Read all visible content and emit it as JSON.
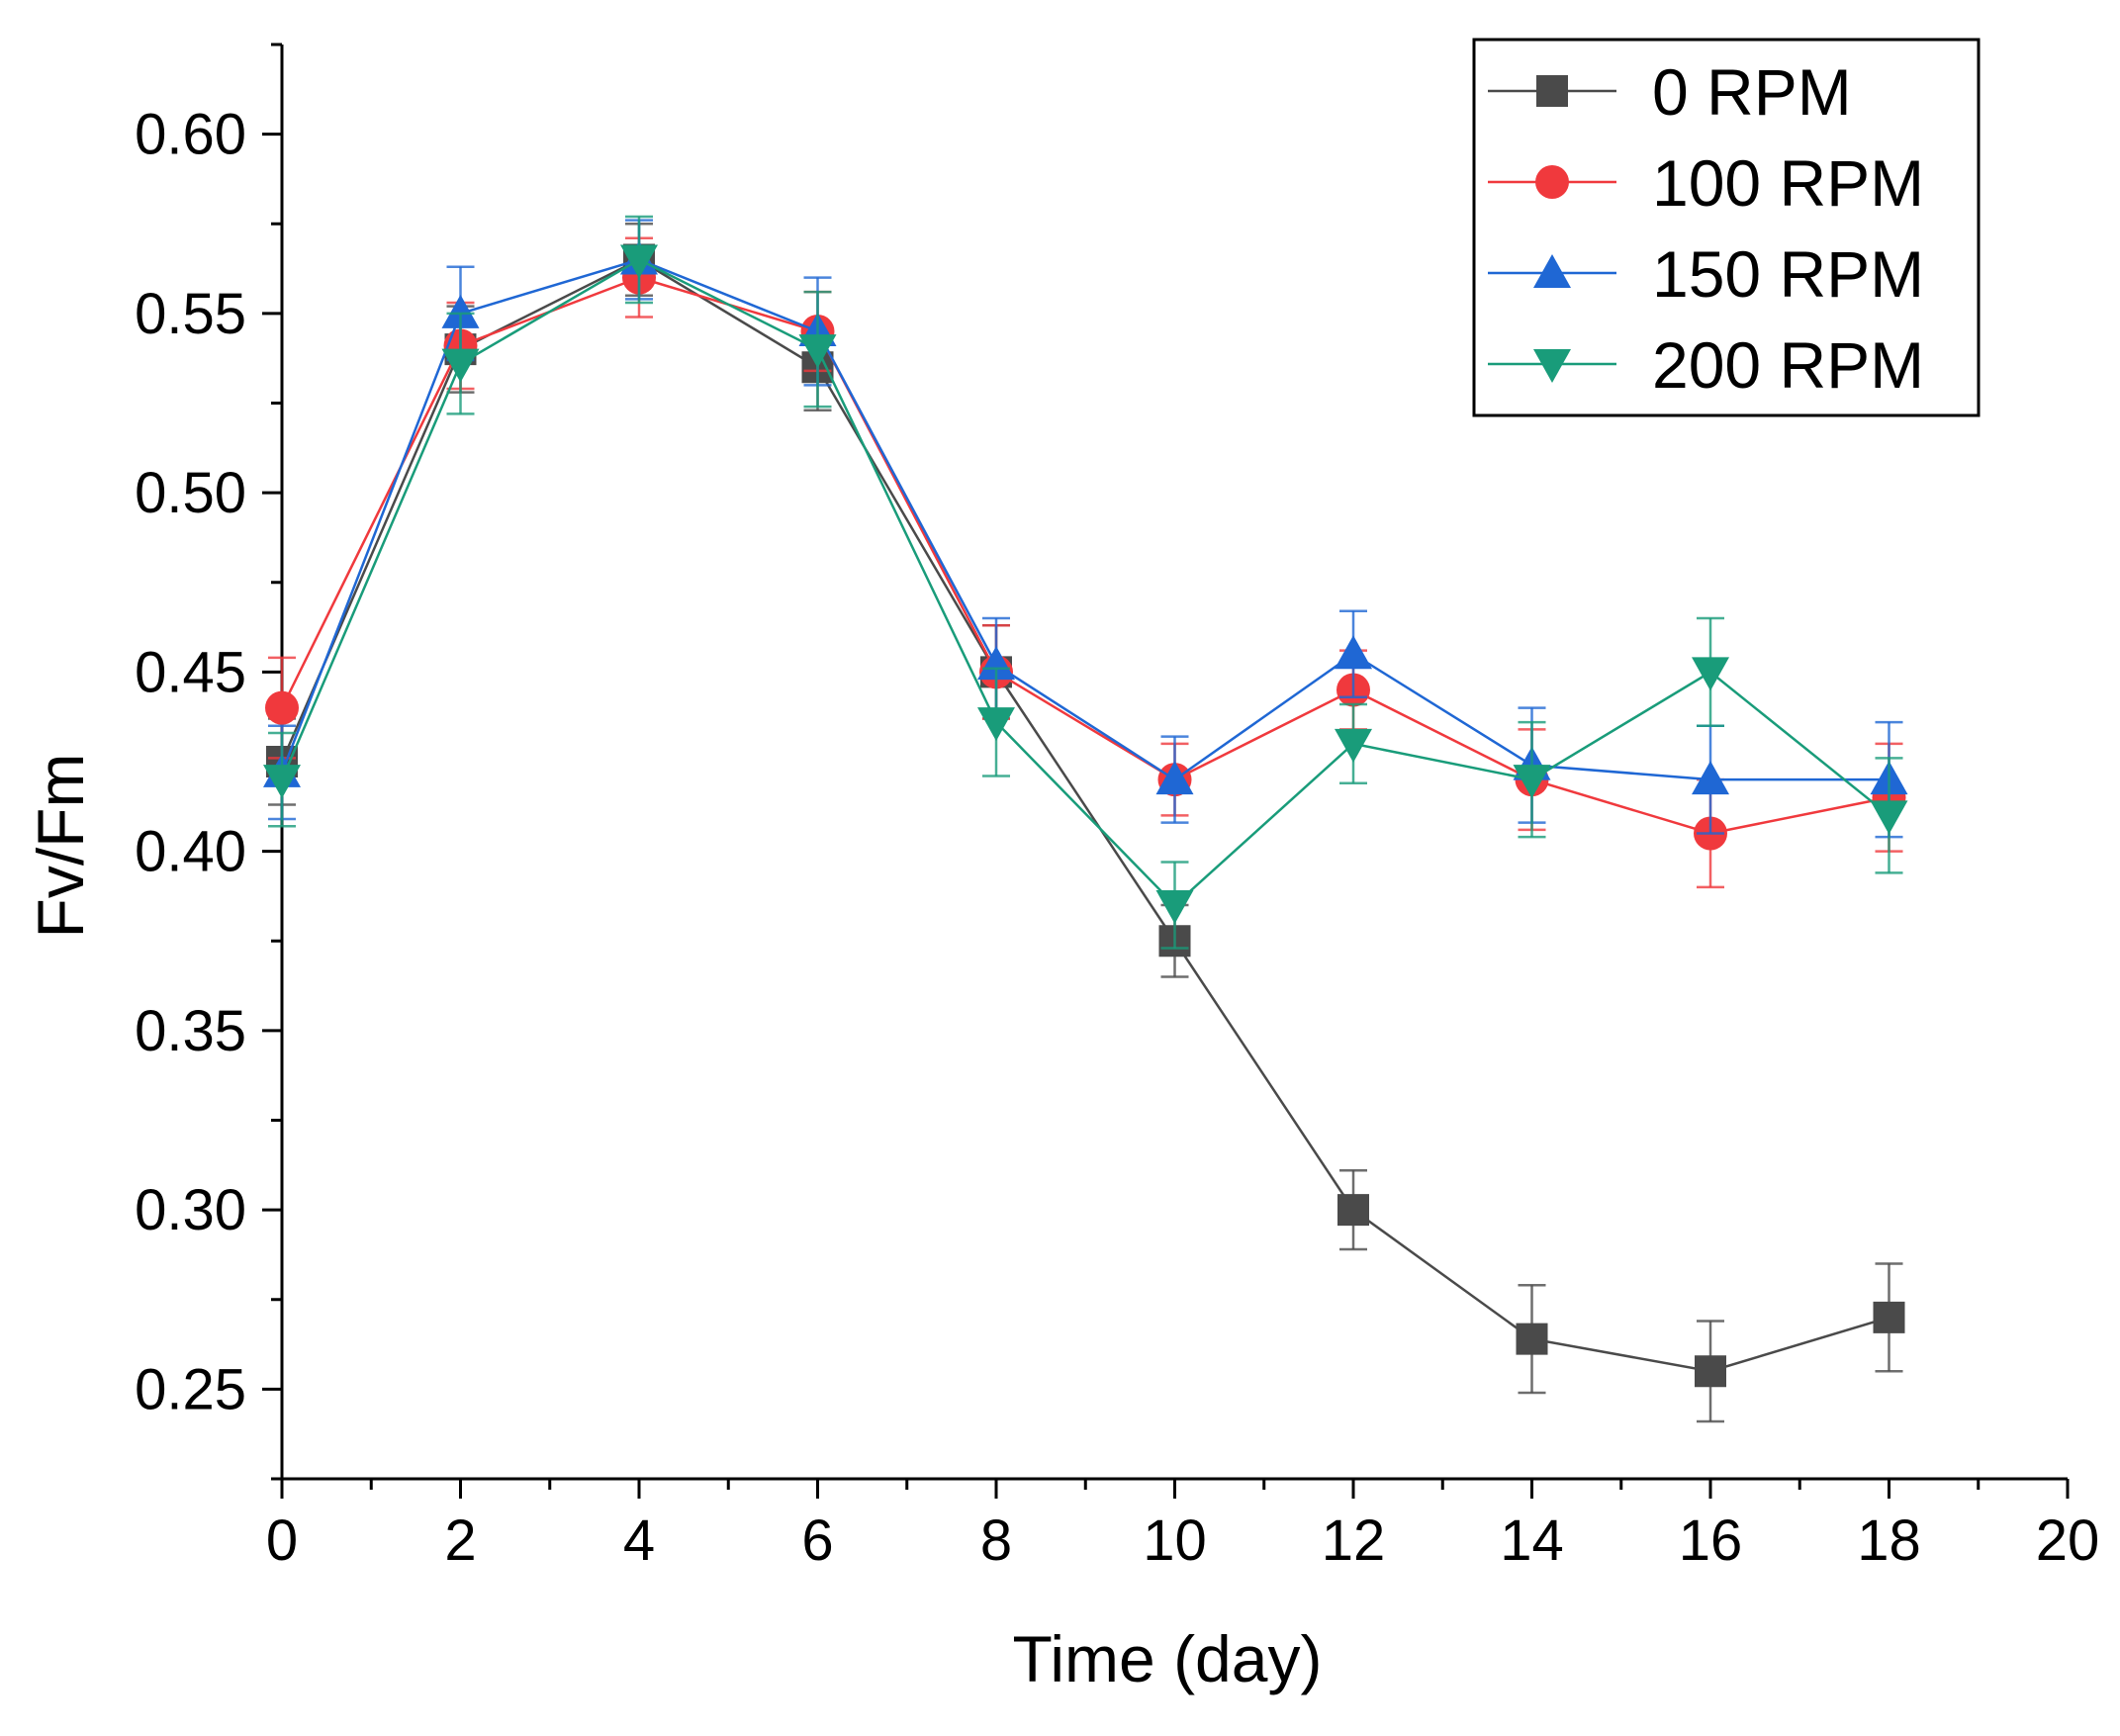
{
  "chart_data": {
    "type": "line",
    "xlabel": "Time (day)",
    "ylabel": "Fv/Fm",
    "xlim": [
      0,
      20
    ],
    "ylim": [
      0.225,
      0.625
    ],
    "xticks": [
      0,
      2,
      4,
      6,
      8,
      10,
      12,
      14,
      16,
      18,
      20
    ],
    "xtick_labels": [
      "0",
      "2",
      "4",
      "6",
      "8",
      "10",
      "12",
      "14",
      "16",
      "18",
      "20"
    ],
    "yticks": [
      0.25,
      0.3,
      0.35,
      0.4,
      0.45,
      0.5,
      0.55,
      0.6
    ],
    "ytick_labels": [
      "0.25",
      "0.30",
      "0.35",
      "0.40",
      "0.45",
      "0.50",
      "0.55",
      "0.60"
    ],
    "grid": false,
    "legend_position": "top-right",
    "x": [
      0,
      2,
      4,
      6,
      8,
      10,
      12,
      14,
      16,
      18
    ],
    "series": [
      {
        "name": "0 RPM",
        "color": "#4a4a4a",
        "marker": "square",
        "values": [
          0.425,
          0.54,
          0.565,
          0.535,
          0.45,
          0.375,
          0.3,
          0.264,
          0.255,
          0.27
        ],
        "errors": [
          0.012,
          0.012,
          0.01,
          0.012,
          0.013,
          0.01,
          0.011,
          0.015,
          0.014,
          0.015
        ]
      },
      {
        "name": "100 RPM",
        "color": "#f0393d",
        "marker": "circle",
        "values": [
          0.44,
          0.541,
          0.56,
          0.545,
          0.45,
          0.42,
          0.445,
          0.42,
          0.405,
          0.415
        ],
        "errors": [
          0.014,
          0.012,
          0.011,
          0.011,
          0.013,
          0.01,
          0.011,
          0.014,
          0.015,
          0.015
        ]
      },
      {
        "name": "150 RPM",
        "color": "#1f67d4",
        "marker": "triangle-up",
        "values": [
          0.422,
          0.55,
          0.565,
          0.545,
          0.452,
          0.42,
          0.455,
          0.424,
          0.42,
          0.42
        ],
        "errors": [
          0.013,
          0.013,
          0.011,
          0.015,
          0.013,
          0.012,
          0.012,
          0.016,
          0.015,
          0.016
        ]
      },
      {
        "name": "200 RPM",
        "color": "#199c7a",
        "marker": "triangle-down",
        "values": [
          0.42,
          0.536,
          0.565,
          0.54,
          0.436,
          0.385,
          0.43,
          0.42,
          0.45,
          0.41
        ],
        "errors": [
          0.013,
          0.014,
          0.012,
          0.016,
          0.015,
          0.012,
          0.011,
          0.016,
          0.015,
          0.016
        ]
      }
    ]
  }
}
